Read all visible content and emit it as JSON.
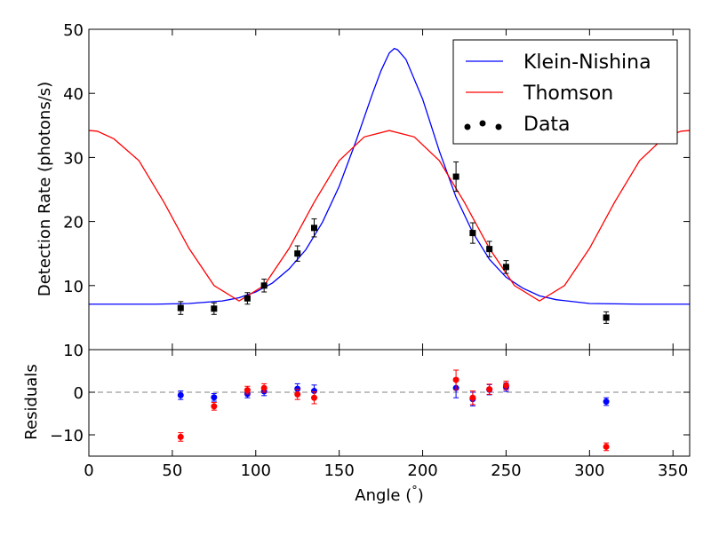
{
  "chart_data": [
    {
      "panel": "main",
      "type": "line",
      "xlabel": "Angle (°)",
      "xlabel_parts": {
        "text": "Angle (",
        "unit": "°",
        "close": ")"
      },
      "ylabel": "Detection Rate (photons/s)",
      "xlim": [
        0,
        360
      ],
      "ylim": [
        0,
        50
      ],
      "xticks": [
        0,
        50,
        100,
        150,
        200,
        250,
        300,
        350
      ],
      "yticks": [
        10,
        20,
        30,
        40,
        50
      ],
      "ytick_labels": [
        "10",
        "20",
        "30",
        "40",
        "50"
      ],
      "grid": false,
      "legend_placement": "top-right",
      "series": [
        {
          "name": "Klein-Nishina",
          "kind": "line",
          "color": "#0000ff",
          "x": [
            0,
            20,
            40,
            60,
            80,
            90,
            100,
            110,
            120,
            130,
            140,
            150,
            160,
            170,
            175,
            180,
            183,
            185,
            190,
            200,
            210,
            220,
            230,
            240,
            250,
            260,
            270,
            280,
            300,
            330,
            360
          ],
          "y": [
            7.1,
            7.1,
            7.1,
            7.2,
            7.6,
            8.1,
            9.0,
            10.4,
            12.6,
            15.6,
            19.9,
            25.5,
            32.5,
            40.0,
            43.5,
            46.3,
            47.0,
            46.8,
            45.3,
            39.1,
            31.0,
            23.8,
            18.3,
            14.1,
            11.3,
            9.6,
            8.4,
            7.8,
            7.2,
            7.1,
            7.1
          ]
        },
        {
          "name": "Thomson",
          "kind": "line",
          "color": "#ff0000",
          "x": [
            0,
            5,
            15,
            30,
            45,
            60,
            75,
            90,
            105,
            120,
            135,
            150,
            165,
            180,
            195,
            210,
            225,
            240,
            255,
            270,
            285,
            300,
            315,
            330,
            345,
            355,
            360
          ],
          "y": [
            34.2,
            34.1,
            32.9,
            29.5,
            23.0,
            15.8,
            10.0,
            7.6,
            10.0,
            15.8,
            23.0,
            29.5,
            33.2,
            34.2,
            33.2,
            29.5,
            23.0,
            15.8,
            10.0,
            7.6,
            10.0,
            15.8,
            23.0,
            29.5,
            33.2,
            34.1,
            34.2
          ]
        },
        {
          "name": "Data",
          "kind": "errorbar",
          "color": "#000000",
          "x": [
            55,
            75,
            95,
            105,
            125,
            135,
            220,
            230,
            240,
            250,
            310
          ],
          "y": [
            6.5,
            6.4,
            8.0,
            10.0,
            15.0,
            19.0,
            27.0,
            18.2,
            15.7,
            12.9,
            5.0
          ],
          "yerr": [
            1.0,
            0.9,
            0.9,
            1.0,
            1.2,
            1.4,
            2.3,
            1.6,
            1.2,
            1.0,
            0.9
          ]
        }
      ]
    },
    {
      "panel": "residuals",
      "type": "scatter",
      "xlabel": "",
      "ylabel": "Residuals",
      "xlim": [
        0,
        360
      ],
      "ylim": [
        -15,
        10
      ],
      "yticks": [
        -10,
        0,
        10
      ],
      "ytick_labels": [
        "−10",
        "0",
        "10"
      ],
      "zero_line": true,
      "zero_line_style": "dashed",
      "zero_line_color": "#808080",
      "series": [
        {
          "kind": "errorbar",
          "color": "#0000ff",
          "x": [
            55,
            75,
            95,
            105,
            125,
            135,
            220,
            230,
            240,
            250,
            310
          ],
          "y": [
            -0.7,
            -1.2,
            -0.4,
            0.2,
            0.8,
            0.3,
            1.0,
            -1.6,
            0.6,
            1.2,
            -2.2
          ],
          "yerr": [
            1.0,
            0.9,
            0.9,
            1.0,
            1.2,
            1.4,
            2.3,
            1.6,
            1.2,
            1.0,
            0.9
          ]
        },
        {
          "kind": "errorbar",
          "color": "#ff0000",
          "x": [
            55,
            75,
            95,
            105,
            125,
            135,
            220,
            230,
            240,
            250,
            310
          ],
          "y": [
            -10.5,
            -3.3,
            0.5,
            1.0,
            -0.5,
            -1.3,
            2.9,
            -1.3,
            0.7,
            1.6,
            -12.8
          ],
          "yerr": [
            1.0,
            0.9,
            0.9,
            1.0,
            1.2,
            1.4,
            2.3,
            1.6,
            1.2,
            1.0,
            0.9
          ]
        }
      ]
    }
  ]
}
